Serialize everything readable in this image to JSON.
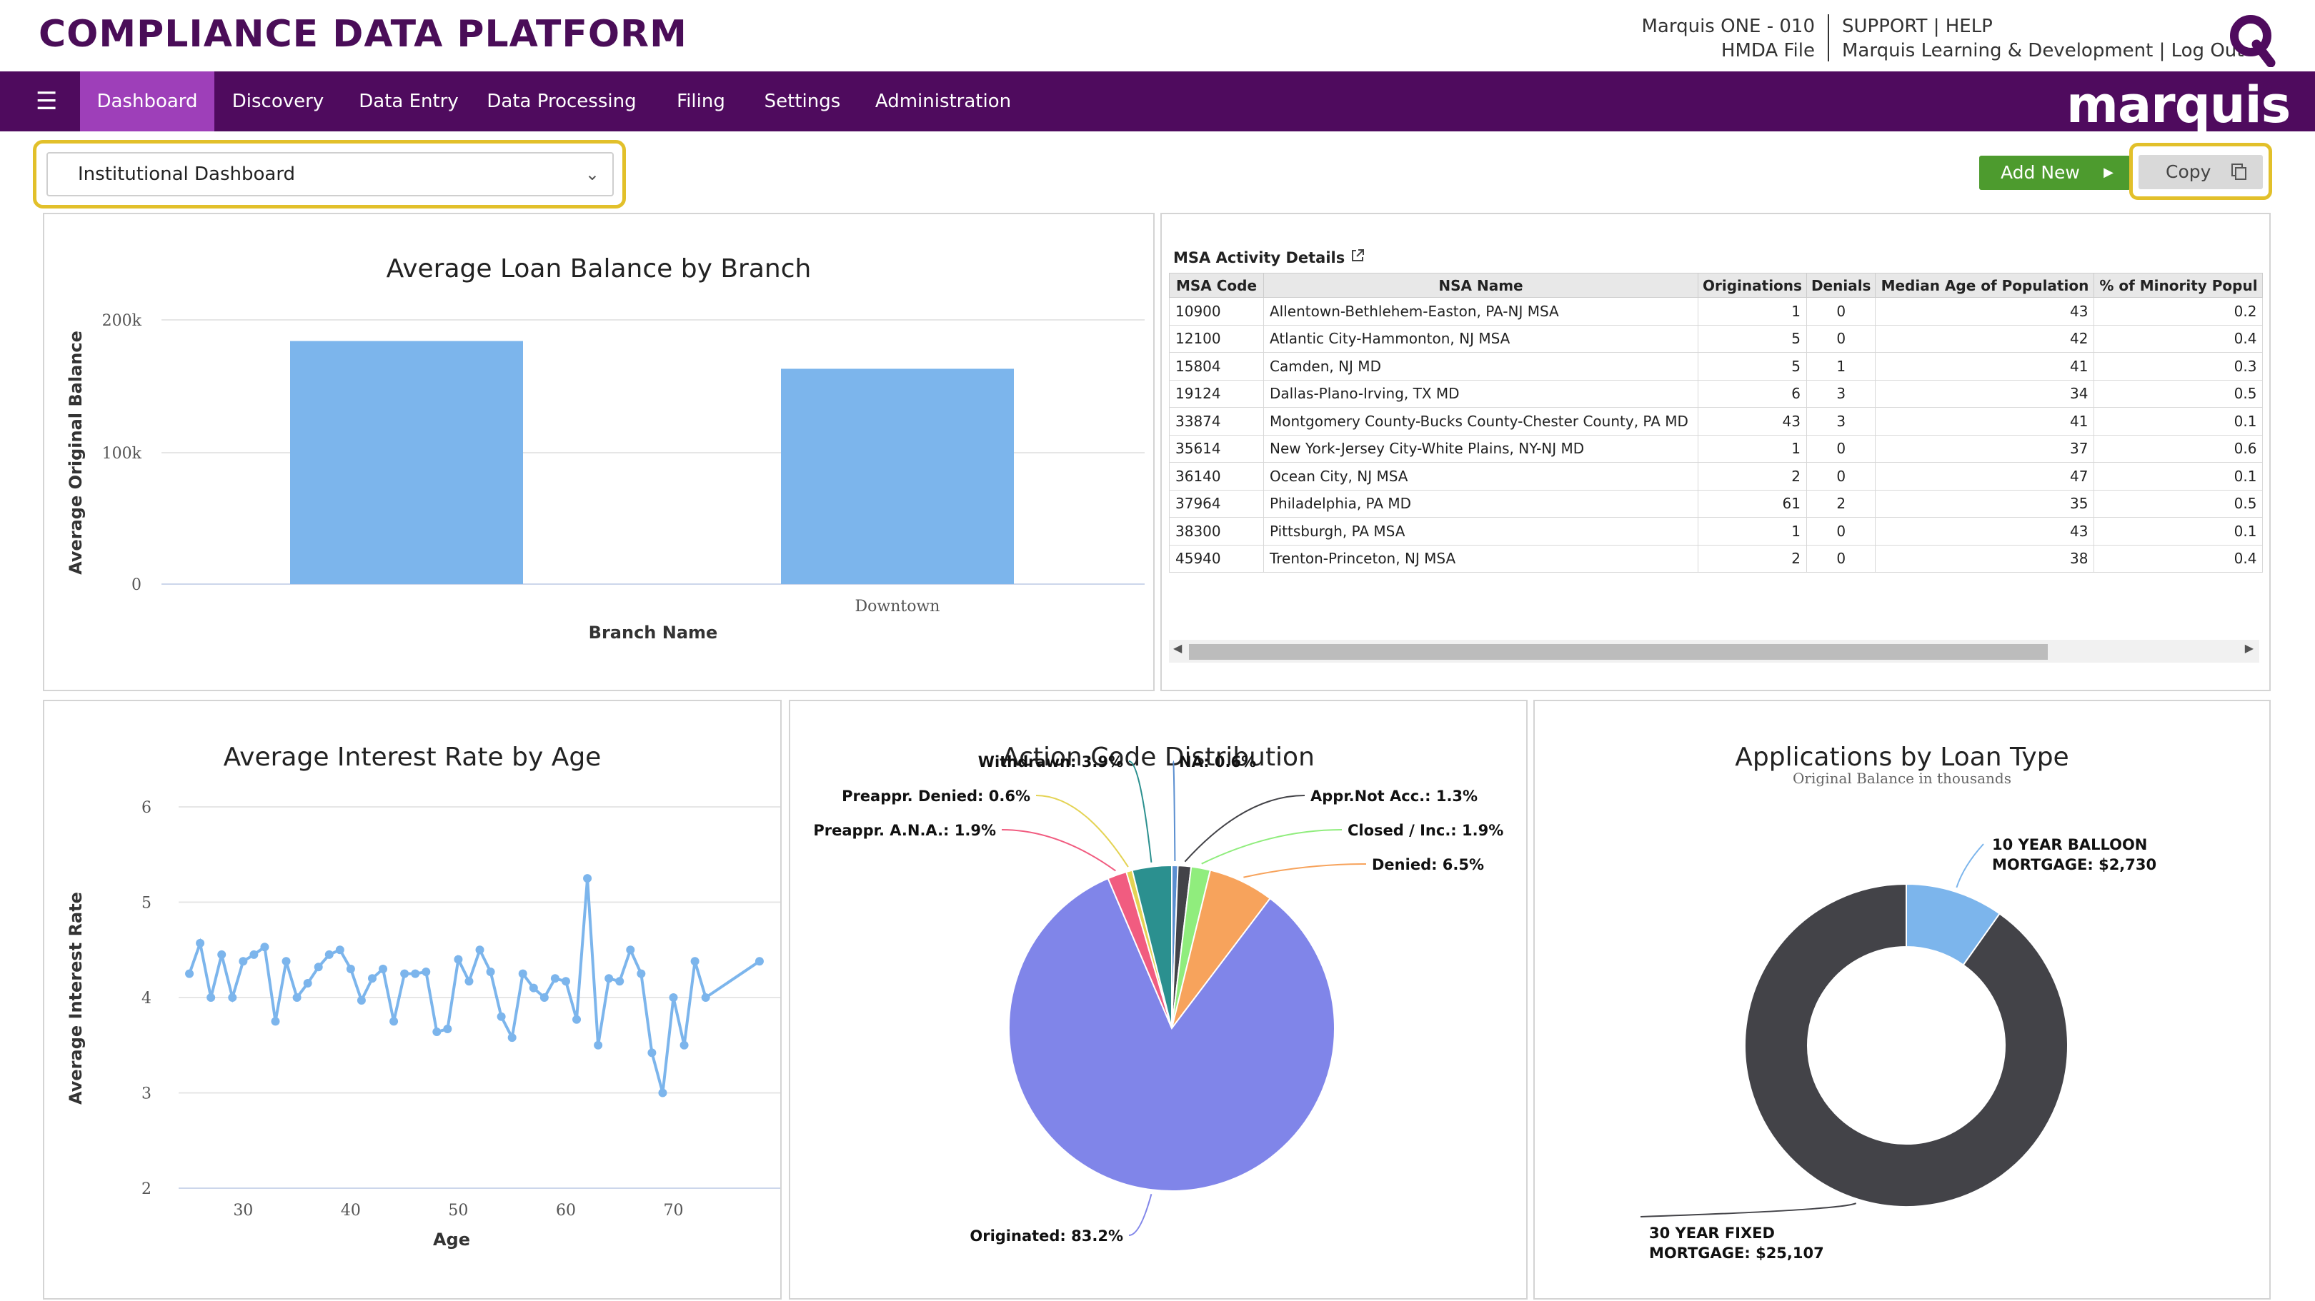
{
  "header": {
    "app_title": "COMPLIANCE DATA PLATFORM",
    "org_line": "Marquis ONE - 010",
    "file_line": "HMDA File",
    "support": "SUPPORT",
    "help": "HELP",
    "user_line": "Marquis Learning & Development",
    "logout": "Log Out",
    "sep": "|"
  },
  "nav": {
    "items": [
      "Dashboard",
      "Discovery",
      "Data Entry",
      "Data Processing",
      "Filing",
      "Settings",
      "Administration"
    ],
    "brand": "marquis"
  },
  "toolbar": {
    "dashboard_select": "Institutional Dashboard",
    "add_new": "Add New",
    "copy": "Copy"
  },
  "branch_chart": {
    "title": "Average Loan Balance by Branch",
    "ylabel": "Average Original Balance",
    "xlabel": "Branch Name",
    "y_ticks": [
      "200k",
      "100k",
      "0"
    ]
  },
  "msa": {
    "title": "MSA Activity Details",
    "columns": [
      "MSA Code",
      "NSA Name",
      "Originations",
      "Denials",
      "Median Age of Population",
      "% of Minority Popul"
    ],
    "rows": [
      [
        "10900",
        "Allentown-Bethlehem-Easton, PA-NJ MSA",
        "1",
        "0",
        "43",
        "0.2"
      ],
      [
        "12100",
        "Atlantic City-Hammonton, NJ MSA",
        "5",
        "0",
        "42",
        "0.4"
      ],
      [
        "15804",
        "Camden, NJ MD",
        "5",
        "1",
        "41",
        "0.3"
      ],
      [
        "19124",
        "Dallas-Plano-Irving, TX MD",
        "6",
        "3",
        "34",
        "0.5"
      ],
      [
        "33874",
        "Montgomery County-Bucks County-Chester County, PA MD",
        "43",
        "3",
        "41",
        "0.1"
      ],
      [
        "35614",
        "New York-Jersey City-White Plains, NY-NJ MD",
        "1",
        "0",
        "37",
        "0.6"
      ],
      [
        "36140",
        "Ocean City, NJ MSA",
        "2",
        "0",
        "47",
        "0.1"
      ],
      [
        "37964",
        "Philadelphia, PA MD",
        "61",
        "2",
        "35",
        "0.5"
      ],
      [
        "38300",
        "Pittsburgh, PA MSA",
        "1",
        "0",
        "43",
        "0.1"
      ],
      [
        "45940",
        "Trenton-Princeton, NJ MSA",
        "2",
        "0",
        "38",
        "0.4"
      ]
    ]
  },
  "interest_chart": {
    "title": "Average Interest Rate by Age",
    "ylabel": "Average Interest Rate",
    "xlabel": "Age"
  },
  "action_chart": {
    "title": "Action Code Distribution"
  },
  "loan_chart": {
    "title": "Applications by Loan Type",
    "subtitle": "Original Balance in thousands"
  },
  "colors": {
    "purple_dark": "#4f0b5e",
    "purple_active": "#9e3fb9",
    "bar_blue": "#7cb5ec",
    "green": "#4d9b2e",
    "highlight": "#e2c02a"
  },
  "chart_data": [
    {
      "type": "bar",
      "title": "Average Loan Balance by Branch",
      "categories": [
        "",
        "Downtown"
      ],
      "values": [
        184000,
        163000
      ],
      "xlabel": "Branch Name",
      "ylabel": "Average Original Balance",
      "ylim": [
        0,
        200000
      ]
    },
    {
      "type": "line",
      "title": "Average Interest Rate by Age",
      "xlabel": "Age",
      "ylabel": "Average Interest Rate",
      "xlim": [
        24,
        79
      ],
      "ylim": [
        2,
        6
      ],
      "x_ticks": [
        30,
        40,
        50,
        60,
        70
      ],
      "y_ticks": [
        2,
        3,
        4,
        5,
        6
      ],
      "x": [
        25,
        26,
        27,
        28,
        29,
        30,
        31,
        32,
        33,
        34,
        35,
        36,
        37,
        38,
        39,
        40,
        41,
        42,
        43,
        44,
        45,
        46,
        47,
        48,
        49,
        50,
        51,
        52,
        53,
        54,
        55,
        56,
        57,
        58,
        59,
        60,
        61,
        62,
        63,
        64,
        65,
        66,
        67,
        68,
        69,
        70,
        71,
        72,
        73,
        78
      ],
      "y": [
        4.25,
        4.57,
        4.0,
        4.45,
        4.0,
        4.38,
        4.45,
        4.53,
        3.75,
        4.38,
        4.0,
        4.15,
        4.32,
        4.45,
        4.5,
        4.3,
        3.97,
        4.2,
        4.3,
        3.75,
        4.25,
        4.25,
        4.27,
        3.64,
        3.67,
        4.4,
        4.17,
        4.5,
        4.27,
        3.8,
        3.58,
        4.25,
        4.1,
        4.0,
        4.2,
        4.17,
        3.77,
        5.25,
        3.5,
        4.2,
        4.17,
        4.5,
        4.25,
        3.42,
        3.0,
        4.0,
        3.5,
        4.38,
        4.0,
        4.38
      ]
    },
    {
      "type": "pie",
      "title": "Action Code Distribution",
      "labels": [
        "NA",
        "Appr.Not Acc.",
        "Closed / Inc.",
        "Denied",
        "Originated",
        "Preappr. A.N.A.",
        "Preappr. Denied",
        "Withdrawn"
      ],
      "values": [
        0.6,
        1.3,
        1.9,
        6.5,
        83.2,
        1.9,
        0.6,
        3.9
      ],
      "display": [
        "NA: 0.6%",
        "Appr.Not Acc.: 1.3%",
        "Closed / Inc.: 1.9%",
        "Denied: 6.5%",
        "Originated: 83.2%",
        "Preappr. A.N.A.: 1.9%",
        "Preappr. Denied: 0.6%",
        "Withdrawn: 3.9%"
      ],
      "colors": [
        "#5b8fd0",
        "#434348",
        "#90ed7d",
        "#f7a35c",
        "#8085e9",
        "#f15c80",
        "#e4d354",
        "#2b908f"
      ]
    },
    {
      "type": "pie",
      "subtype": "donut",
      "title": "Applications by Loan Type",
      "subtitle": "Original Balance in thousands",
      "labels": [
        "10 YEAR BALLOON MORTGAGE",
        "30 YEAR FIXED MORTGAGE"
      ],
      "values": [
        2730,
        25107
      ],
      "display_line1": [
        "10 YEAR BALLOON",
        "30 YEAR FIXED"
      ],
      "display_line2": [
        "MORTGAGE: $2,730",
        "MORTGAGE: $25,107"
      ],
      "colors": [
        "#7cb5ec",
        "#434348"
      ]
    }
  ]
}
